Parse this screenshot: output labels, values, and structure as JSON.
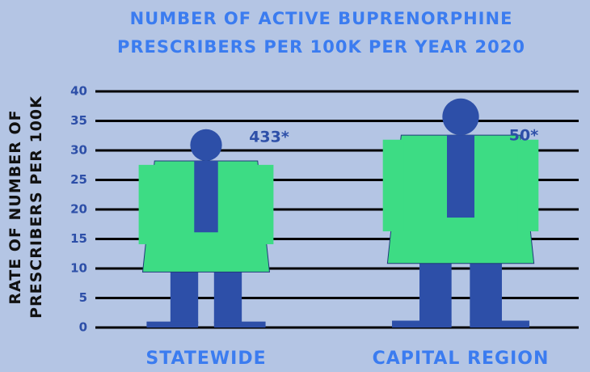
{
  "chart_data": {
    "type": "bar",
    "title": "NUMBER OF ACTIVE BUPRENORPHINE PRESCRIBERS PER 100K PER YEAR 2020",
    "y_label": "RATE OF NUMBER OF PRESCRIBERS PER 100K",
    "categories": [
      "STATEWIDE",
      "CAPITAL REGION"
    ],
    "values": [
      33.6,
      38.8
    ],
    "annotations": [
      "433*",
      "50*"
    ],
    "ylim": [
      0,
      40
    ],
    "yticks": [
      0,
      5,
      10,
      15,
      20,
      25,
      30,
      35,
      40
    ],
    "grid": true,
    "colors": {
      "body": "#3ddc84",
      "legs": "#2d4fa8"
    }
  }
}
